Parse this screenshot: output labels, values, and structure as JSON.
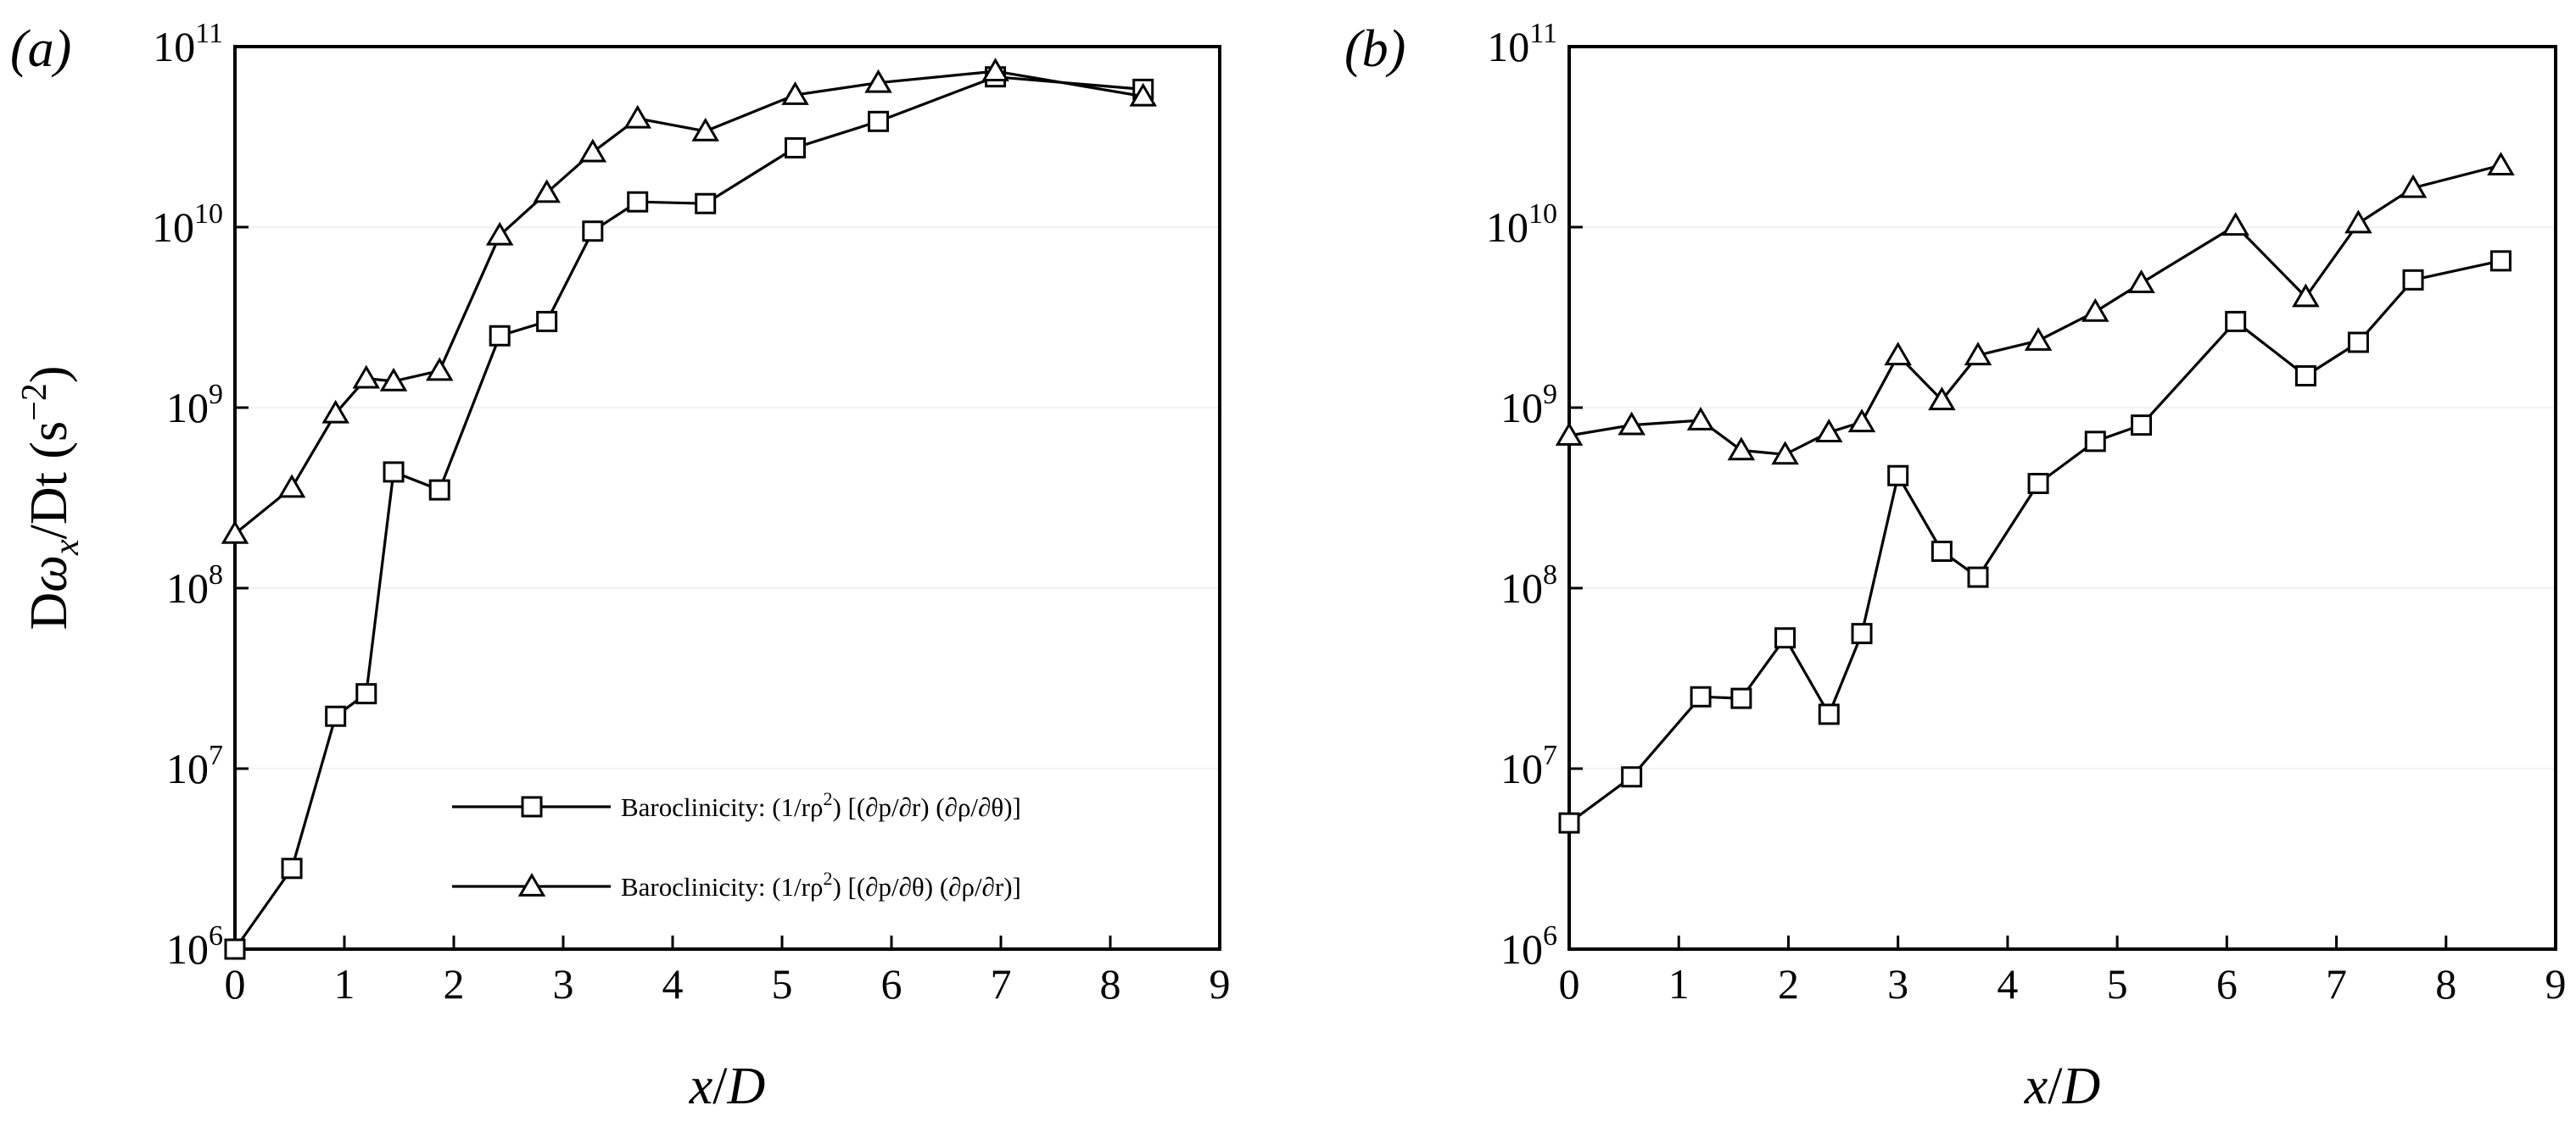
{
  "chart_data": [
    {
      "type": "line",
      "panel_label": "(a)",
      "xlabel": "x/D",
      "ylabel": "Dω_x/Dt (s^-2)",
      "y_scale": "log",
      "xlim": [
        0,
        9
      ],
      "ylim": [
        1000000.0,
        100000000000.0
      ],
      "x_ticks": [
        0,
        1,
        2,
        3,
        4,
        5,
        6,
        7,
        8,
        9
      ],
      "y_ticks": [
        {
          "base": "10",
          "exp": "6",
          "value": 1000000.0
        },
        {
          "base": "10",
          "exp": "7",
          "value": 10000000.0
        },
        {
          "base": "10",
          "exp": "8",
          "value": 100000000.0
        },
        {
          "base": "10",
          "exp": "9",
          "value": 1000000000.0
        },
        {
          "base": "10",
          "exp": "10",
          "value": 10000000000.0
        },
        {
          "base": "10",
          "exp": "11",
          "value": 100000000000.0
        }
      ],
      "grid": true,
      "legend_position": "bottom-right",
      "series": [
        {
          "marker": "square",
          "legend_prefix": "Baroclinicity: (1/rρ",
          "legend_suffix": ") [(∂p/∂r) (∂ρ/∂θ)]",
          "x": [
            0,
            0.52,
            0.92,
            1.2,
            1.45,
            1.87,
            2.42,
            2.85,
            3.27,
            3.68,
            4.3,
            5.12,
            5.88,
            6.95,
            8.3
          ],
          "y": [
            1000000.0,
            2800000.0,
            19500000.0,
            26000000.0,
            440000000.0,
            350000000.0,
            2500000000.0,
            3000000000.0,
            9500000000.0,
            13800000000.0,
            13500000000.0,
            27500000000.0,
            38500000000.0,
            68000000000.0,
            58000000000.0
          ]
        },
        {
          "marker": "triangle",
          "legend_prefix": "Baroclinicity: (1/rρ",
          "legend_suffix": ") [(∂p/∂θ) (∂ρ/∂r)]",
          "x": [
            0,
            0.52,
            0.92,
            1.2,
            1.45,
            1.87,
            2.42,
            2.85,
            3.27,
            3.68,
            4.3,
            5.12,
            5.88,
            6.95,
            8.3
          ],
          "y": [
            200000000.0,
            360000000.0,
            930000000.0,
            1450000000.0,
            1400000000.0,
            1600000000.0,
            9000000000.0,
            15500000000.0,
            26000000000.0,
            40000000000.0,
            34000000000.0,
            54000000000.0,
            63000000000.0,
            73000000000.0,
            53000000000.0
          ]
        }
      ]
    },
    {
      "type": "line",
      "panel_label": "(b)",
      "xlabel": "x/D",
      "ylabel": "",
      "y_scale": "log",
      "xlim": [
        0,
        9
      ],
      "ylim": [
        1000000.0,
        100000000000.0
      ],
      "x_ticks": [
        0,
        1,
        2,
        3,
        4,
        5,
        6,
        7,
        8,
        9
      ],
      "y_ticks": [
        {
          "base": "10",
          "exp": "6",
          "value": 1000000.0
        },
        {
          "base": "10",
          "exp": "7",
          "value": 10000000.0
        },
        {
          "base": "10",
          "exp": "8",
          "value": 100000000.0
        },
        {
          "base": "10",
          "exp": "9",
          "value": 1000000000.0
        },
        {
          "base": "10",
          "exp": "10",
          "value": 10000000000.0
        },
        {
          "base": "10",
          "exp": "11",
          "value": 100000000000.0
        }
      ],
      "grid": true,
      "series": [
        {
          "marker": "square",
          "x": [
            0,
            0.57,
            1.2,
            1.57,
            1.97,
            2.37,
            2.67,
            3.0,
            3.4,
            3.73,
            4.28,
            4.8,
            5.22,
            6.08,
            6.72,
            7.2,
            7.7,
            8.5
          ],
          "y": [
            5000000.0,
            9000000.0,
            25000000.0,
            24500000.0,
            53000000.0,
            20000000.0,
            56000000.0,
            420000000.0,
            160000000.0,
            115000000.0,
            380000000.0,
            650000000.0,
            800000000.0,
            3000000000.0,
            1500000000.0,
            2300000000.0,
            5100000000.0,
            6500000000.0
          ]
        },
        {
          "marker": "triangle",
          "x": [
            0,
            0.57,
            1.2,
            1.57,
            1.97,
            2.37,
            2.67,
            3.0,
            3.4,
            3.73,
            4.28,
            4.8,
            5.22,
            6.08,
            6.72,
            7.2,
            7.7,
            8.5
          ],
          "y": [
            700000000.0,
            800000000.0,
            850000000.0,
            580000000.0,
            550000000.0,
            730000000.0,
            830000000.0,
            1950000000.0,
            1100000000.0,
            1950000000.0,
            2350000000.0,
            3400000000.0,
            4900000000.0,
            10200000000.0,
            4100000000.0,
            10500000000.0,
            16500000000.0,
            22000000000.0
          ]
        }
      ]
    }
  ]
}
